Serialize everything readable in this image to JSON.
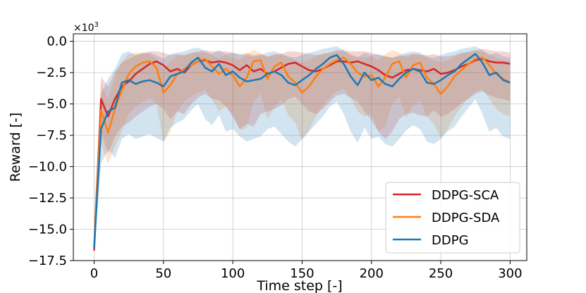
{
  "chart_data": {
    "type": "line",
    "xlabel": "Time step [-]",
    "ylabel": "Reward [-]",
    "y_scale_label_base": "×10",
    "y_scale_label_exp": "3",
    "xlim": [
      -15,
      312
    ],
    "ylim": [
      -17.5,
      0.6
    ],
    "xticks": [
      0,
      50,
      100,
      150,
      200,
      250,
      300
    ],
    "yticks": [
      0.0,
      -2.5,
      -5.0,
      -7.5,
      -10.0,
      -12.5,
      -15.0,
      -17.5
    ],
    "ytick_labels": [
      "0.0",
      "−2.5",
      "−5.0",
      "−7.5",
      "−10.0",
      "−12.5",
      "−15.0",
      "−17.5"
    ],
    "grid": true,
    "legend_position": "bottom-right",
    "x": [
      0,
      5,
      10,
      15,
      20,
      25,
      30,
      35,
      40,
      45,
      50,
      55,
      60,
      65,
      70,
      75,
      80,
      85,
      90,
      95,
      100,
      105,
      110,
      115,
      120,
      125,
      130,
      135,
      140,
      145,
      150,
      155,
      160,
      165,
      170,
      175,
      180,
      185,
      190,
      195,
      200,
      205,
      210,
      215,
      220,
      225,
      230,
      235,
      240,
      245,
      250,
      255,
      260,
      265,
      270,
      275,
      280,
      285,
      290,
      295,
      300
    ],
    "series": [
      {
        "name": "DDPG-SCA",
        "color": "#d62728",
        "values": [
          -16.7,
          -4.6,
          -6.0,
          -4.6,
          -3.6,
          -3.2,
          -2.6,
          -2.2,
          -1.8,
          -1.6,
          -1.9,
          -2.4,
          -2.2,
          -2.5,
          -1.9,
          -1.6,
          -1.5,
          -1.7,
          -1.6,
          -1.7,
          -1.9,
          -2.3,
          -1.9,
          -2.4,
          -2.2,
          -2.6,
          -2.4,
          -2.1,
          -1.8,
          -1.7,
          -2.0,
          -2.3,
          -2.4,
          -2.2,
          -1.9,
          -1.6,
          -1.6,
          -1.7,
          -1.6,
          -1.8,
          -2.0,
          -2.3,
          -2.7,
          -2.9,
          -2.6,
          -2.3,
          -2.2,
          -2.3,
          -2.4,
          -2.2,
          -2.6,
          -2.5,
          -2.3,
          -2.0,
          -1.8,
          -1.5,
          -1.4,
          -1.6,
          -1.7,
          -1.7,
          -1.8
        ],
        "upper": [
          -14.8,
          -2.8,
          -3.6,
          -2.4,
          -1.7,
          -1.4,
          -1.1,
          -0.9,
          -0.8,
          -0.8,
          -0.9,
          -1.1,
          -1.0,
          -1.1,
          -0.9,
          -0.8,
          -0.7,
          -0.8,
          -0.8,
          -0.8,
          -0.9,
          -1.1,
          -0.9,
          -1.1,
          -1.0,
          -1.2,
          -1.1,
          -1.0,
          -0.8,
          -0.8,
          -0.9,
          -1.0,
          -1.1,
          -1.0,
          -0.9,
          -0.7,
          -0.7,
          -0.8,
          -0.8,
          -0.8,
          -0.9,
          -1.1,
          -1.2,
          -1.3,
          -1.2,
          -1.1,
          -1.0,
          -1.1,
          -1.1,
          -1.0,
          -1.2,
          -1.2,
          -1.1,
          -0.9,
          -0.8,
          -0.7,
          -0.6,
          -0.7,
          -0.8,
          -0.8,
          -0.9
        ],
        "lower": [
          -16.9,
          -7.2,
          -9.0,
          -7.6,
          -6.8,
          -6.5,
          -6.0,
          -5.6,
          -5.2,
          -5.0,
          -5.4,
          -6.2,
          -5.6,
          -5.8,
          -5.0,
          -4.5,
          -4.2,
          -4.6,
          -4.7,
          -5.2,
          -6.0,
          -7.0,
          -6.6,
          -6.8,
          -5.8,
          -5.6,
          -5.4,
          -5.1,
          -4.6,
          -4.4,
          -5.0,
          -5.6,
          -5.8,
          -5.4,
          -4.8,
          -4.3,
          -4.2,
          -4.5,
          -4.8,
          -5.6,
          -6.3,
          -7.2,
          -7.8,
          -7.2,
          -6.2,
          -5.8,
          -5.7,
          -5.9,
          -6.0,
          -5.5,
          -6.0,
          -5.8,
          -5.4,
          -4.9,
          -4.6,
          -4.2,
          -4.0,
          -4.3,
          -4.5,
          -4.6,
          -4.8
        ]
      },
      {
        "name": "DDPG-SDA",
        "color": "#ff7f0e",
        "values": [
          -16.4,
          -5.5,
          -7.3,
          -5.4,
          -3.9,
          -2.6,
          -2.0,
          -1.7,
          -1.6,
          -2.1,
          -4.1,
          -3.5,
          -2.6,
          -2.2,
          -1.9,
          -1.6,
          -1.4,
          -2.0,
          -2.6,
          -2.2,
          -2.7,
          -3.6,
          -2.9,
          -1.6,
          -1.5,
          -3.0,
          -2.0,
          -1.7,
          -2.8,
          -3.3,
          -4.1,
          -3.6,
          -2.8,
          -2.2,
          -1.8,
          -1.5,
          -1.3,
          -1.8,
          -2.5,
          -2.8,
          -2.7,
          -3.6,
          -2.9,
          -1.8,
          -1.6,
          -2.9,
          -1.9,
          -1.7,
          -2.9,
          -3.4,
          -4.2,
          -3.6,
          -2.8,
          -2.3,
          -1.8,
          -1.4,
          -1.3,
          -1.9,
          -2.6,
          -3.0,
          -3.3
        ],
        "upper": [
          -14.5,
          -3.4,
          -4.6,
          -2.8,
          -1.6,
          -1.0,
          -0.9,
          -0.9,
          -1.0,
          -1.4,
          -2.2,
          -1.6,
          -1.2,
          -1.1,
          -1.0,
          -0.9,
          -0.9,
          -1.1,
          -1.3,
          -1.1,
          -1.3,
          -1.5,
          -1.0,
          -0.7,
          -0.9,
          -1.3,
          -1.0,
          -1.0,
          -1.3,
          -1.5,
          -1.7,
          -1.5,
          -1.2,
          -1.0,
          -0.9,
          -0.8,
          -0.8,
          -1.0,
          -1.2,
          -1.3,
          -1.2,
          -1.5,
          -1.0,
          -0.7,
          -0.9,
          -1.3,
          -1.0,
          -1.0,
          -1.3,
          -1.5,
          -1.7,
          -1.5,
          -1.2,
          -1.0,
          -0.9,
          -0.8,
          -0.8,
          -1.0,
          -1.3,
          -1.5,
          -1.6
        ],
        "lower": [
          -16.8,
          -8.2,
          -9.8,
          -8.4,
          -7.2,
          -5.8,
          -5.2,
          -4.8,
          -4.5,
          -5.0,
          -8.1,
          -7.2,
          -5.6,
          -4.8,
          -4.4,
          -4.1,
          -3.9,
          -4.6,
          -5.6,
          -5.2,
          -5.8,
          -7.1,
          -6.9,
          -4.8,
          -4.2,
          -6.2,
          -5.2,
          -4.6,
          -5.9,
          -6.5,
          -7.9,
          -7.1,
          -6.0,
          -5.1,
          -4.5,
          -4.0,
          -3.8,
          -4.5,
          -5.6,
          -6.0,
          -5.8,
          -7.2,
          -6.8,
          -5.0,
          -4.4,
          -6.1,
          -5.1,
          -4.7,
          -6.0,
          -6.6,
          -7.7,
          -7.0,
          -6.0,
          -5.2,
          -4.5,
          -4.0,
          -3.8,
          -4.6,
          -5.4,
          -5.8,
          -6.0
        ]
      },
      {
        "name": "DDPG",
        "color": "#1f77b4",
        "values": [
          -16.5,
          -7.0,
          -5.6,
          -5.3,
          -3.3,
          -3.1,
          -3.4,
          -3.2,
          -3.1,
          -3.3,
          -3.6,
          -2.8,
          -2.6,
          -2.4,
          -1.7,
          -1.3,
          -2.1,
          -2.4,
          -1.8,
          -2.7,
          -2.4,
          -2.9,
          -3.2,
          -3.1,
          -3.0,
          -2.6,
          -2.4,
          -2.7,
          -3.3,
          -3.5,
          -3.1,
          -2.7,
          -2.2,
          -1.8,
          -1.3,
          -1.1,
          -1.8,
          -2.8,
          -3.5,
          -2.5,
          -3.1,
          -2.9,
          -3.4,
          -3.6,
          -3.0,
          -2.5,
          -2.2,
          -2.4,
          -3.3,
          -3.4,
          -3.1,
          -2.7,
          -2.4,
          -1.8,
          -1.4,
          -1.0,
          -1.7,
          -2.7,
          -2.5,
          -3.1,
          -3.3
        ],
        "upper": [
          -14.0,
          -4.2,
          -3.0,
          -2.2,
          -1.0,
          -0.8,
          -1.1,
          -1.0,
          -0.9,
          -1.1,
          -1.4,
          -1.0,
          -0.9,
          -0.8,
          -0.6,
          -0.5,
          -0.8,
          -1.0,
          -0.7,
          -1.0,
          -0.9,
          -1.0,
          -1.1,
          -1.2,
          -1.1,
          -0.9,
          -0.8,
          -1.0,
          -1.2,
          -1.3,
          -1.1,
          -0.9,
          -0.8,
          -0.6,
          -0.5,
          -0.4,
          -0.7,
          -1.1,
          -1.3,
          -0.9,
          -1.1,
          -1.0,
          -1.2,
          -1.3,
          -1.1,
          -0.9,
          -0.8,
          -0.9,
          -1.2,
          -1.3,
          -1.1,
          -0.9,
          -0.8,
          -0.6,
          -0.5,
          -0.4,
          -0.7,
          -1.1,
          -0.9,
          -1.2,
          -1.3
        ],
        "lower": [
          -16.8,
          -9.8,
          -8.6,
          -9.3,
          -7.8,
          -7.4,
          -7.8,
          -7.6,
          -7.4,
          -7.7,
          -8.0,
          -6.9,
          -6.5,
          -6.2,
          -5.5,
          -5.0,
          -6.2,
          -6.7,
          -5.9,
          -7.2,
          -7.0,
          -7.6,
          -8.0,
          -7.8,
          -7.6,
          -7.0,
          -6.8,
          -7.4,
          -8.0,
          -8.4,
          -7.8,
          -7.2,
          -6.6,
          -6.0,
          -5.2,
          -4.8,
          -5.8,
          -7.2,
          -8.1,
          -6.9,
          -7.8,
          -7.6,
          -8.2,
          -8.4,
          -7.8,
          -7.1,
          -6.7,
          -7.0,
          -8.0,
          -8.2,
          -7.8,
          -7.2,
          -6.8,
          -6.0,
          -5.3,
          -4.6,
          -5.8,
          -7.2,
          -6.9,
          -7.6,
          -7.8
        ]
      }
    ]
  }
}
